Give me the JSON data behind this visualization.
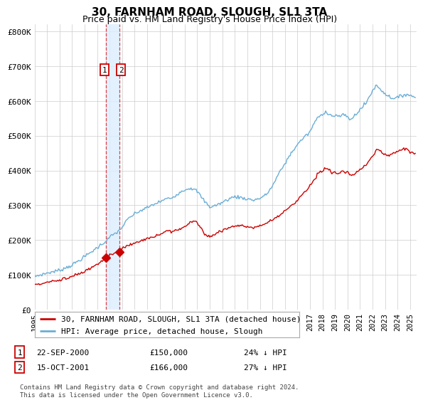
{
  "title": "30, FARNHAM ROAD, SLOUGH, SL1 3TA",
  "subtitle": "Price paid vs. HM Land Registry's House Price Index (HPI)",
  "footer": "Contains HM Land Registry data © Crown copyright and database right 2024.\nThis data is licensed under the Open Government Licence v3.0.",
  "legend_line1": "30, FARNHAM ROAD, SLOUGH, SL1 3TA (detached house)",
  "legend_line2": "HPI: Average price, detached house, Slough",
  "annotation1_label": "1",
  "annotation1_date": "22-SEP-2000",
  "annotation1_price": "£150,000",
  "annotation1_hpi": "24% ↓ HPI",
  "annotation2_label": "2",
  "annotation2_date": "15-OCT-2001",
  "annotation2_price": "£166,000",
  "annotation2_hpi": "27% ↓ HPI",
  "sale1_x": 2000.72,
  "sale1_y": 150000,
  "sale2_x": 2001.79,
  "sale2_y": 166000,
  "hpi_color": "#6baed6",
  "price_color": "#cc0000",
  "marker_color": "#cc0000",
  "vline_color": "#e04040",
  "vband_color": "#ddeeff",
  "ylim": [
    0,
    820000
  ],
  "yticks": [
    0,
    100000,
    200000,
    300000,
    400000,
    500000,
    600000,
    700000,
    800000
  ],
  "ytick_labels": [
    "£0",
    "£100K",
    "£200K",
    "£300K",
    "£400K",
    "£500K",
    "£600K",
    "£700K",
    "£800K"
  ],
  "xlim_start": 1995.0,
  "xlim_end": 2025.5,
  "bg_color": "#ffffff",
  "grid_color": "#cccccc"
}
